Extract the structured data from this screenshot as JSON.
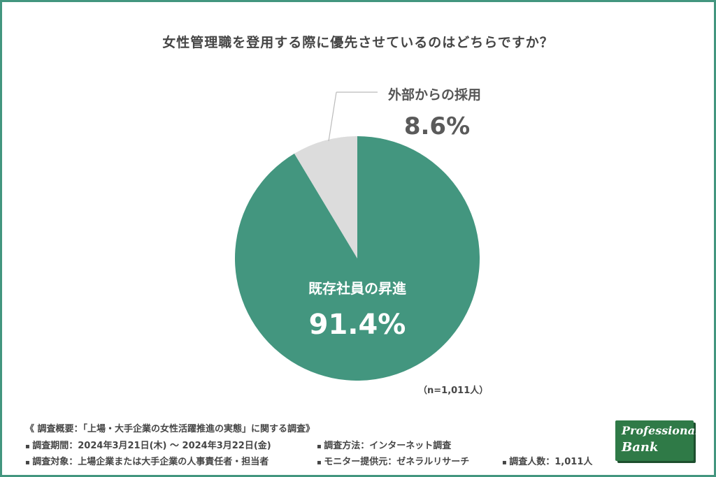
{
  "title": "女性管理職を登用する際に優先させているのはどちらですか？",
  "chart_data": {
    "type": "pie",
    "slices": [
      {
        "label": "既存社員の昇進",
        "value": 91.4,
        "display": "91.4%",
        "color": "#43967f"
      },
      {
        "label": "外部からの採用",
        "value": 8.6,
        "display": "8.6%",
        "color": "#dcdcdc"
      }
    ],
    "start": "12 o'clock",
    "direction": "clockwise"
  },
  "sample_note": "（n=1,011人）",
  "survey": {
    "heading": "《 調査概要：「上場・大手企業の女性活躍推進の実態」に関する調査》",
    "period": "調査期間：2024年3月21日(木) 〜 2024年3月22日(金)",
    "method": "調査方法：インターネット調査",
    "target": "調査対象：上場企業または大手企業の人事責任者・担当者",
    "provider": "モニター提供元：ゼネラルリサーチ",
    "count": "調査人数：1,011人"
  },
  "logo": {
    "line1": "Professional",
    "line2": "Bank"
  }
}
